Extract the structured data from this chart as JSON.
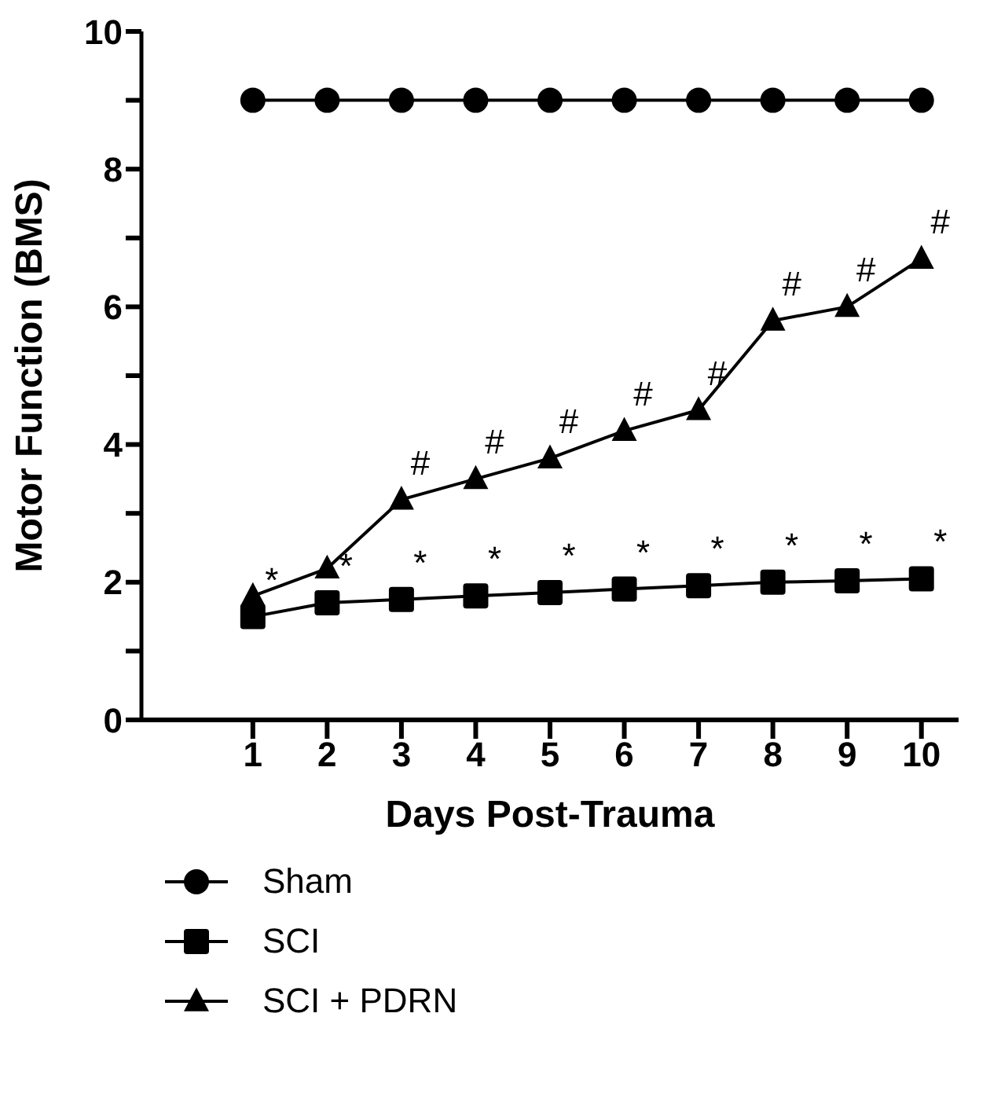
{
  "chart_data": {
    "type": "line",
    "xlabel": "Days Post-Trauma",
    "ylabel": "Motor Function (BMS)",
    "x": [
      1,
      2,
      3,
      4,
      5,
      6,
      7,
      8,
      9,
      10
    ],
    "xlim": [
      -0.5,
      10.5
    ],
    "xticks": [
      1,
      2,
      3,
      4,
      5,
      6,
      7,
      8,
      9,
      10
    ],
    "ylim": [
      0,
      10
    ],
    "yticks": [
      0,
      {
        "value": 1,
        "label": null
      },
      2,
      {
        "value": 3,
        "label": null
      },
      4,
      {
        "value": 5,
        "label": null
      },
      6,
      {
        "value": 7,
        "label": null
      },
      8,
      {
        "value": 9,
        "label": null
      },
      10
    ],
    "grid": false,
    "legend": "bottom",
    "line_style": "solid",
    "series": [
      {
        "name": "Sham",
        "color": "#000000",
        "marker": "circle",
        "values": [
          9,
          9,
          9,
          9,
          9,
          9,
          9,
          9,
          9,
          9
        ]
      },
      {
        "name": "SCI",
        "color": "#000000",
        "marker": "square",
        "values": [
          1.5,
          1.7,
          1.75,
          1.8,
          1.85,
          1.9,
          1.95,
          2.0,
          2.02,
          2.05
        ]
      },
      {
        "name": "SCI + PDRN",
        "color": "#000000",
        "marker": "triangle",
        "values": [
          1.8,
          2.2,
          3.2,
          3.5,
          3.8,
          4.2,
          4.5,
          5.8,
          6.0,
          6.7
        ]
      }
    ],
    "annotations": [
      {
        "text": "*",
        "x": 1,
        "y": 1.5
      },
      {
        "text": "*",
        "x": 2,
        "y": 1.7
      },
      {
        "text": "*",
        "x": 3,
        "y": 1.75
      },
      {
        "text": "*",
        "x": 4,
        "y": 1.8
      },
      {
        "text": "*",
        "x": 5,
        "y": 1.85
      },
      {
        "text": "*",
        "x": 6,
        "y": 1.9
      },
      {
        "text": "*",
        "x": 7,
        "y": 1.95
      },
      {
        "text": "*",
        "x": 8,
        "y": 2.0
      },
      {
        "text": "*",
        "x": 9,
        "y": 2.02
      },
      {
        "text": "*",
        "x": 10,
        "y": 2.05
      },
      {
        "text": "#",
        "x": 3,
        "y": 3.2
      },
      {
        "text": "#",
        "x": 4,
        "y": 3.5
      },
      {
        "text": "#",
        "x": 5,
        "y": 3.8
      },
      {
        "text": "#",
        "x": 6,
        "y": 4.2
      },
      {
        "text": "#",
        "x": 7,
        "y": 4.5
      },
      {
        "text": "#",
        "x": 8,
        "y": 5.8
      },
      {
        "text": "#",
        "x": 9,
        "y": 6.0
      },
      {
        "text": "#",
        "x": 10,
        "y": 6.7
      }
    ]
  }
}
